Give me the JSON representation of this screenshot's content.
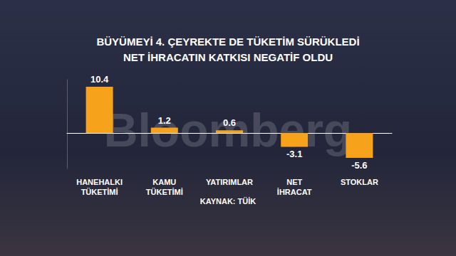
{
  "chart_data": {
    "type": "bar",
    "title": "BÜYÜMEYİ 4. ÇEYREKTE DE TÜKETİM SÜRÜKLEDİ\nNET İHRACATIN KATKISI NEGATİF OLDU",
    "categories": [
      "HANEHALKI\nTÜKETİMİ",
      "KAMU\nTÜKETİMİ",
      "YATIRIMLAR",
      "NET\nİHRACAT",
      "STOKLAR"
    ],
    "values": [
      10.4,
      1.2,
      0.6,
      -3.1,
      -5.6
    ],
    "color": "#f7a21b",
    "ylim": [
      -8,
      12
    ],
    "grid": false,
    "data_labels": true,
    "tick_labels": "x",
    "source": "KAYNAK: TÜİK",
    "watermark": "Bloomberg"
  }
}
